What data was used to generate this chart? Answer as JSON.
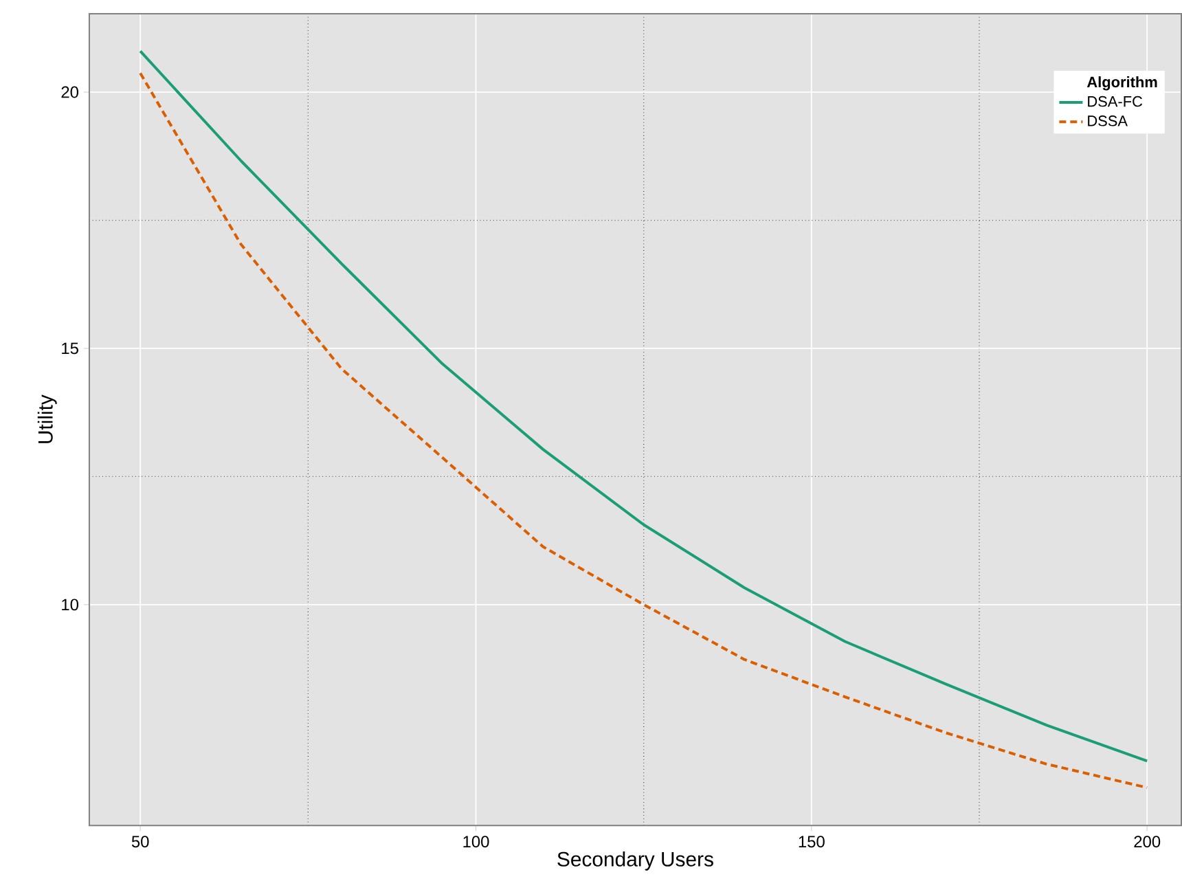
{
  "chart_data": {
    "type": "line",
    "xlabel": "Secondary Users",
    "ylabel": "Utility",
    "legend_title": "Algorithm",
    "legend": "top right",
    "grid": true,
    "x": [
      50,
      65,
      80,
      95,
      110,
      125,
      140,
      155,
      170,
      185,
      200
    ],
    "xlim": [
      42.4,
      205.1
    ],
    "ylim": [
      5.69,
      21.53
    ],
    "xticks": [
      50,
      100,
      150,
      200
    ],
    "yticks": [
      10,
      15,
      20
    ],
    "series": [
      {
        "name": "DSA-FC",
        "color": "#1b9e77",
        "line_style": "solid",
        "values": [
          20.8,
          18.66,
          16.65,
          14.7,
          13.03,
          11.56,
          10.33,
          9.28,
          8.45,
          7.65,
          6.95
        ]
      },
      {
        "name": "DSSA",
        "color": "#d95f02",
        "line_style": "dashed",
        "values": [
          20.37,
          17.03,
          14.6,
          12.87,
          11.13,
          10.0,
          8.93,
          8.2,
          7.5,
          6.89,
          6.43
        ]
      }
    ]
  }
}
